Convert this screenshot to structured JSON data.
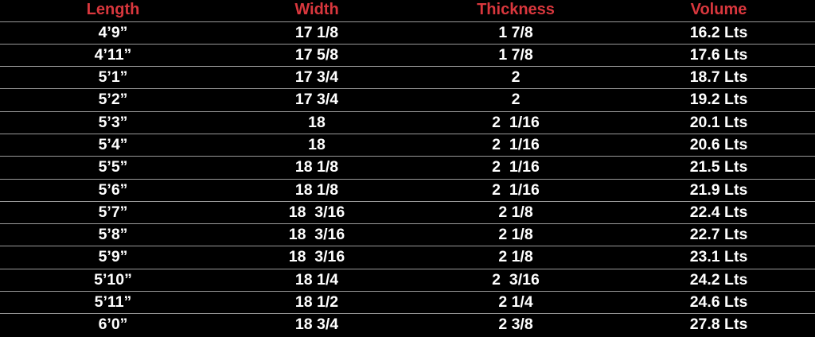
{
  "table": {
    "headers": [
      "Length",
      "Width",
      "Thickness",
      "Volume"
    ],
    "rows": [
      [
        "4’9”",
        "17 1/8",
        "1 7/8",
        "16.2 Lts"
      ],
      [
        "4’11”",
        "17 5/8",
        "1 7/8",
        "17.6 Lts"
      ],
      [
        "5’1”",
        "17 3/4",
        "2",
        "18.7 Lts"
      ],
      [
        "5’2”",
        "17 3/4",
        "2",
        "19.2 Lts"
      ],
      [
        "5’3”",
        "18",
        "2  1/16",
        "20.1 Lts"
      ],
      [
        "5’4”",
        "18",
        "2  1/16",
        "20.6 Lts"
      ],
      [
        "5’5”",
        "18 1/8",
        "2  1/16",
        "21.5 Lts"
      ],
      [
        "5’6”",
        "18 1/8",
        "2  1/16",
        "21.9 Lts"
      ],
      [
        "5’7”",
        "18  3/16",
        "2 1/8",
        "22.4 Lts"
      ],
      [
        "5’8”",
        "18  3/16",
        "2 1/8",
        "22.7 Lts"
      ],
      [
        "5’9”",
        "18  3/16",
        "2 1/8",
        "23.1 Lts"
      ],
      [
        "5’10”",
        "18 1/4",
        "2  3/16",
        "24.2 Lts"
      ],
      [
        "5’11”",
        "18 1/2",
        "2 1/4",
        "24.6 Lts"
      ],
      [
        "6’0”",
        "18 3/4",
        "2 3/8",
        "27.8 Lts"
      ]
    ]
  },
  "colors": {
    "header_text": "#d9373d",
    "body_text": "#ffffff",
    "background": "#000000",
    "divider": "#9a9a9a"
  }
}
